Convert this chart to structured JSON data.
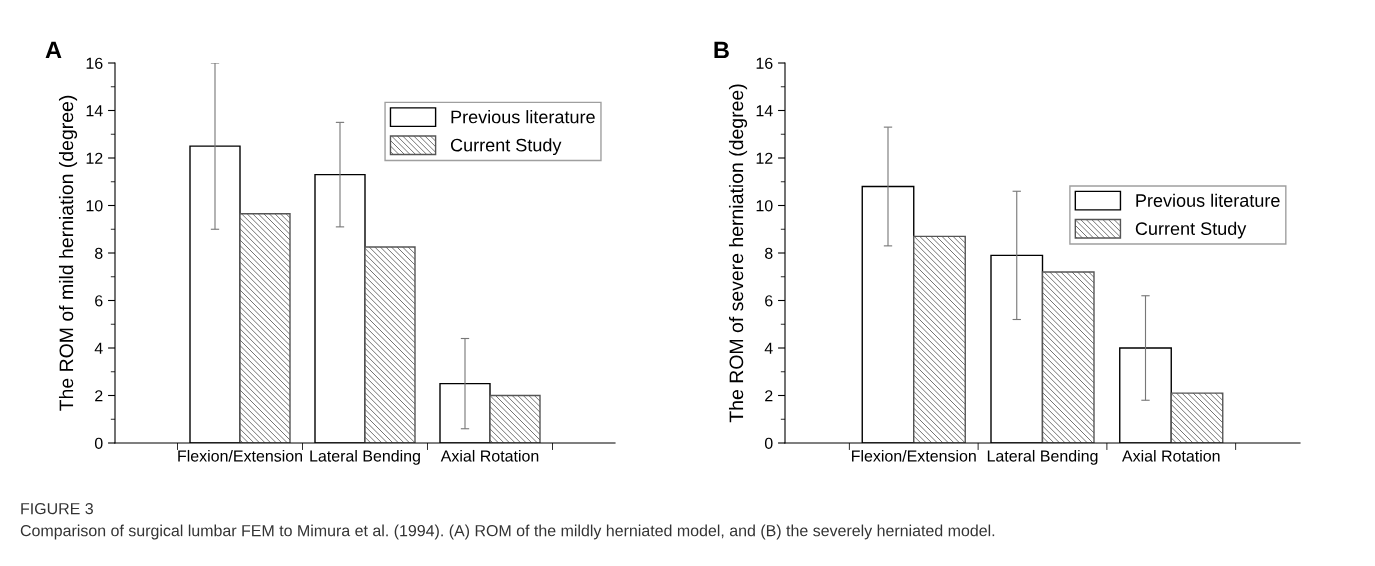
{
  "chart_data": [
    {
      "type": "bar",
      "title": "A",
      "ylabel": "The ROM of mild herniation (degree)",
      "categories": [
        "Flexion/Extension",
        "Lateral Bending",
        "Axial Rotation"
      ],
      "series": [
        {
          "name": "Previous literature",
          "color": "#ffffff",
          "values": [
            12.5,
            11.3,
            2.5
          ],
          "errors": [
            3.5,
            2.2,
            1.9
          ]
        },
        {
          "name": "Current Study",
          "color": "#555555",
          "values": [
            9.65,
            8.25,
            2.0
          ]
        }
      ],
      "ylim": [
        0,
        16
      ],
      "yticks": [
        0,
        2,
        4,
        6,
        8,
        10,
        12,
        14,
        16
      ],
      "grid": false,
      "legend": "top right",
      "annotations": [
        "FIGURE 3",
        "Comparison of surgical lumbar FEM to Mimura et al. (1994). (A) ROM of the mildly herniated model, and (B) the severely herniated model."
      ]
    },
    {
      "type": "bar",
      "title": "B",
      "ylabel": "The ROM of severe herniation (degree)",
      "categories": [
        "Flexion/Extension",
        "Lateral Bending",
        "Axial Rotation"
      ],
      "series": [
        {
          "name": "Previous literature",
          "color": "#ffffff",
          "values": [
            10.8,
            7.9,
            4.0
          ],
          "errors": [
            2.5,
            2.7,
            2.2
          ]
        },
        {
          "name": "Current Study",
          "color": "#555555",
          "values": [
            8.7,
            7.2,
            2.1
          ]
        }
      ],
      "ylim": [
        0,
        16
      ],
      "yticks": [
        0,
        2,
        4,
        6,
        8,
        10,
        12,
        14,
        16
      ],
      "grid": false,
      "legend": "right"
    }
  ]
}
